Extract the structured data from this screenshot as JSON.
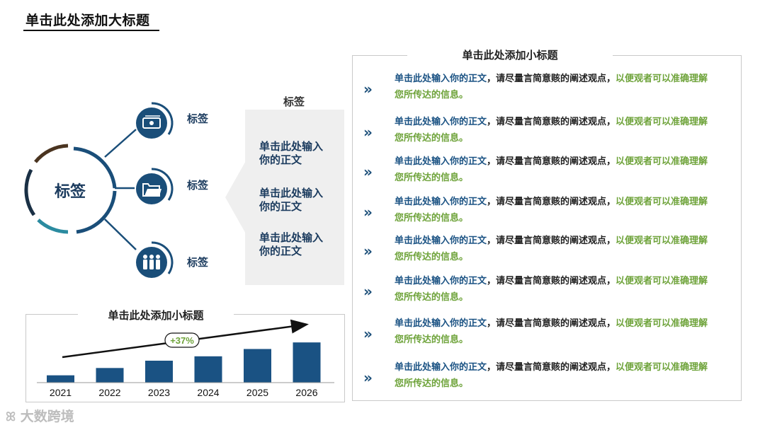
{
  "main_title": "单击此处添加大标题",
  "diagram": {
    "center_label": "标签",
    "branches": [
      {
        "label": "标签",
        "icon": "money-icon"
      },
      {
        "label": "标签",
        "icon": "folder-icon"
      },
      {
        "label": "标签",
        "icon": "people-icon"
      }
    ]
  },
  "tag_panel": {
    "title": "标签",
    "items": [
      {
        "line1": "单击此处输入",
        "line2": "你的正文"
      },
      {
        "line1": "单击此处输入",
        "line2": "你的正文"
      },
      {
        "line1": "单击此处输入",
        "line2": "你的正文"
      }
    ]
  },
  "right_box": {
    "title": "单击此处添加小标题",
    "arrow_glyph": "»",
    "rows": [
      {
        "part1": "单击此处输入你的正文",
        "part2": "，请尽量言简意赅的阐述观点，",
        "part3": "以便观者可以准确理解",
        "part4": "您所传达的信息。"
      },
      {
        "part1": "单击此处输入你的正文",
        "part2": "，请尽量言简意赅的阐述观点，",
        "part3": "以便观者可以准确理解",
        "part4": "您所传达的信息。"
      },
      {
        "part1": "单击此处输入你的正文",
        "part2": "，请尽量言简意赅的阐述观点，",
        "part3": "以便观者可以准确理解",
        "part4": "您所传达的信息。"
      },
      {
        "part1": "单击此处输入你的正文",
        "part2": "，请尽量言简意赅的阐述观点，",
        "part3": "以便观者可以准确理解",
        "part4": "您所传达的信息。"
      },
      {
        "part1": "单击此处输入你的正文",
        "part2": "，请尽量言简意赅的阐述观点，",
        "part3": "以便观者可以准确理解",
        "part4": "您所传达的信息。"
      },
      {
        "part1": "单击此处输入你的正文",
        "part2": "，请尽量言简意赅的阐述观点，",
        "part3": "以便观者可以准确理解",
        "part4": "您所传达的信息。"
      },
      {
        "part1": "单击此处输入你的正文",
        "part2": "，请尽量言简意赅的阐述观点，",
        "part3": "以便观者可以准确理解",
        "part4": "您所传达的信息。"
      },
      {
        "part1": "单击此处输入你的正文",
        "part2": "，请尽量言简意赅的阐述观点，",
        "part3": "以便观者可以准确理解",
        "part4": "您所传达的信息。"
      }
    ]
  },
  "chart": {
    "title": "单击此处添加小标题",
    "growth_label": "+37%"
  },
  "chart_data": {
    "type": "bar",
    "categories": [
      "2021",
      "2022",
      "2023",
      "2024",
      "2025",
      "2026"
    ],
    "values": [
      1,
      2,
      3,
      3.6,
      4.6,
      5.5
    ],
    "bar_color": "#1a5283"
  },
  "watermark": "大数跨境",
  "colors": {
    "navy": "#1a4e79",
    "teal": "#2b8ba0",
    "brown": "#4a3420",
    "green": "#6ea33a"
  }
}
